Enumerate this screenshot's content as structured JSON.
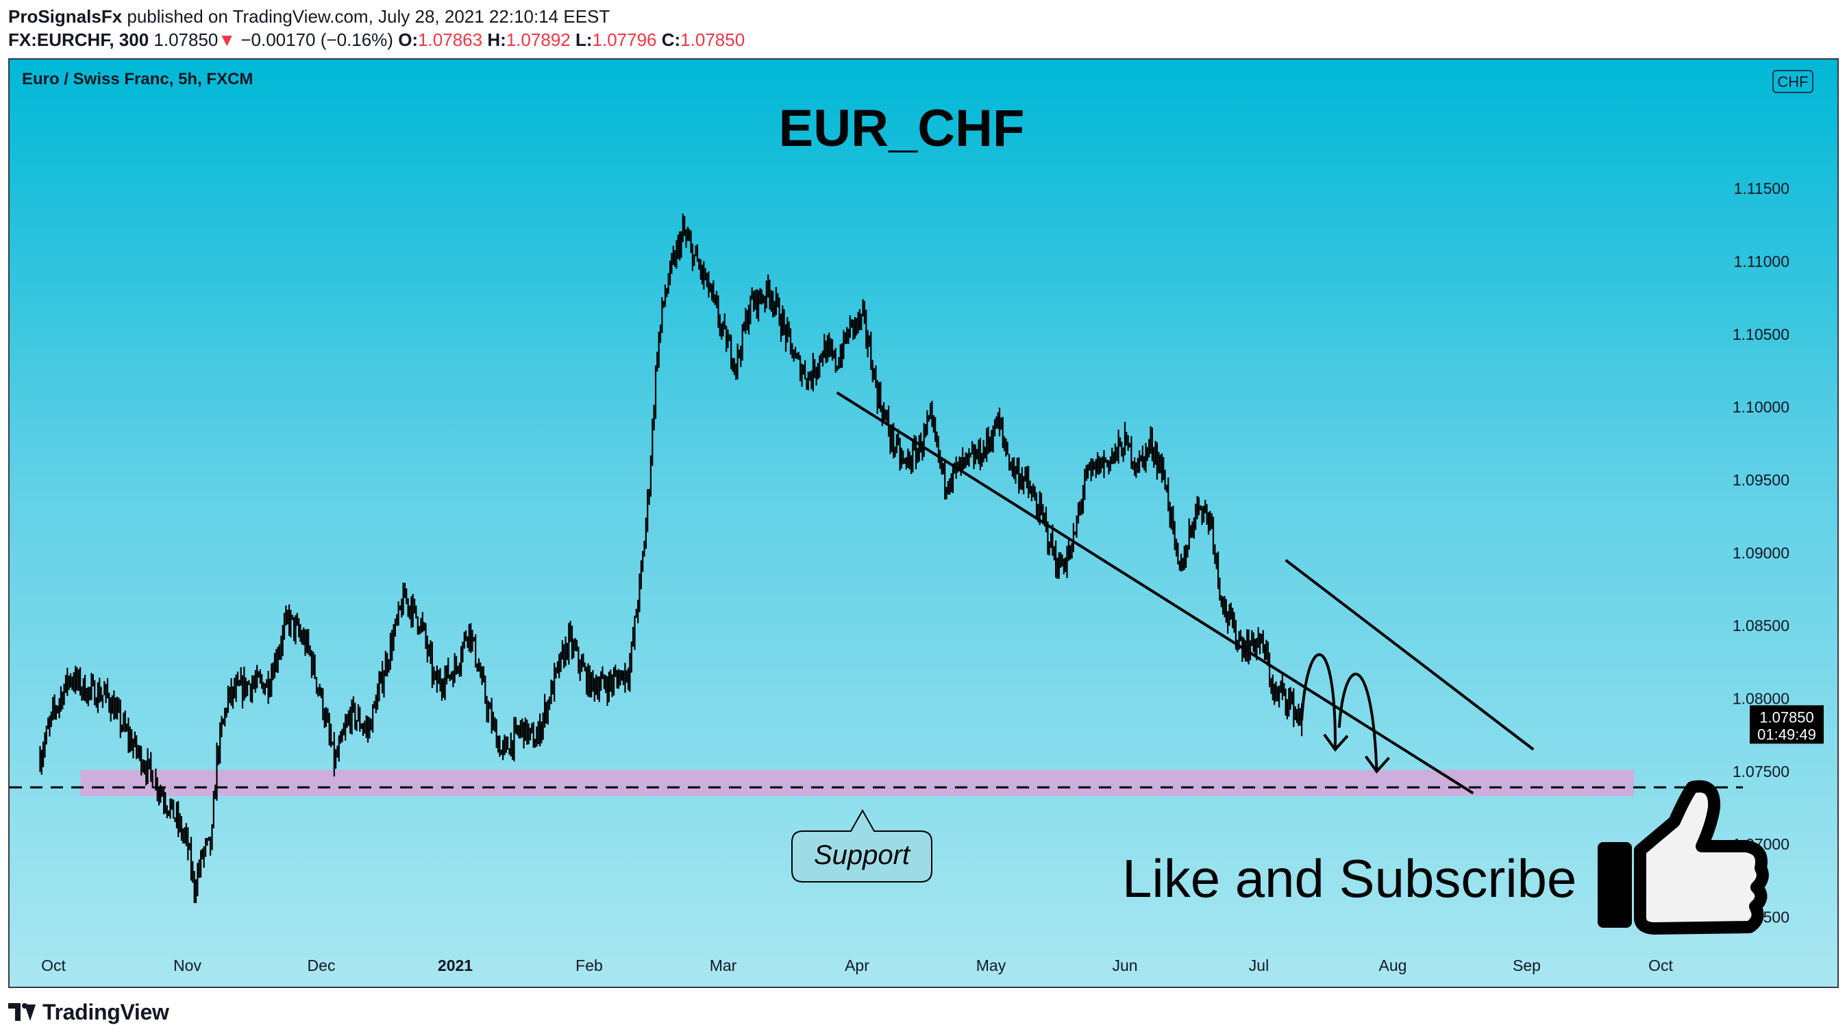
{
  "header": {
    "publisher": "ProSignalsFx",
    "published_text": "published on TradingView.com, July 28, 2021 22:10:14 EEST",
    "symbol": "FX:EURCHF, 300",
    "last": "1.07850",
    "change_arrow": "▼",
    "change": "−0.00170 (−0.16%)",
    "o_label": "O:",
    "o_value": "1.07863",
    "h_label": "H:",
    "h_value": "1.07892",
    "l_label": "L:",
    "l_value": "1.07796",
    "c_label": "C:",
    "c_value": "1.07850"
  },
  "footer": {
    "brand": "TradingView",
    "logo_icon": "tradingview-logo-icon"
  },
  "colors": {
    "bg_top": "#00b8d6",
    "bg_bottom": "#a9e7f1",
    "candles": "#000000",
    "support_zone": "#d8a6d8",
    "down": "#f23645",
    "frame": "#363a45"
  },
  "chart_data": {
    "type": "candlestick",
    "instrument_label": "Euro / Swiss Franc, 5h, FXCM",
    "title": "EUR_CHF",
    "currency_badge": "CHF",
    "y_ticks": [
      "1.11500",
      "1.11000",
      "1.10500",
      "1.10000",
      "1.09500",
      "1.09000",
      "1.08500",
      "1.08000",
      "1.07500",
      "1.07000",
      "1.06500"
    ],
    "ylim": [
      1.0614,
      1.1183
    ],
    "x_months": [
      "Oct",
      "Nov",
      "Dec",
      "2021",
      "Feb",
      "Mar",
      "Apr",
      "May",
      "Jun",
      "Jul",
      "Aug",
      "Sep",
      "Oct"
    ],
    "x_range_months": [
      0,
      12
    ],
    "last_price_label": "1.07850",
    "countdown_label": "01:49:49",
    "price_path": [
      [
        -0.1,
        1.076
      ],
      [
        0.0,
        1.079
      ],
      [
        0.12,
        1.0815
      ],
      [
        0.25,
        1.0805
      ],
      [
        0.4,
        1.0802
      ],
      [
        0.55,
        1.0775
      ],
      [
        0.75,
        1.0745
      ],
      [
        0.9,
        1.072
      ],
      [
        1.0,
        1.07
      ],
      [
        1.05,
        1.067
      ],
      [
        1.12,
        1.0695
      ],
      [
        1.18,
        1.07
      ],
      [
        1.22,
        1.076
      ],
      [
        1.3,
        1.08
      ],
      [
        1.45,
        1.081
      ],
      [
        1.6,
        1.081
      ],
      [
        1.75,
        1.0855
      ],
      [
        1.9,
        1.0835
      ],
      [
        2.0,
        1.08
      ],
      [
        2.1,
        1.0755
      ],
      [
        2.22,
        1.079
      ],
      [
        2.35,
        1.0778
      ],
      [
        2.5,
        1.083
      ],
      [
        2.62,
        1.087
      ],
      [
        2.75,
        1.085
      ],
      [
        2.85,
        1.081
      ],
      [
        3.0,
        1.082
      ],
      [
        3.1,
        1.085
      ],
      [
        3.25,
        1.079
      ],
      [
        3.35,
        1.0762
      ],
      [
        3.5,
        1.078
      ],
      [
        3.6,
        1.077
      ],
      [
        3.75,
        1.0815
      ],
      [
        3.85,
        1.084
      ],
      [
        4.0,
        1.081
      ],
      [
        4.15,
        1.081
      ],
      [
        4.3,
        1.082
      ],
      [
        4.4,
        1.0895
      ],
      [
        4.45,
        1.095
      ],
      [
        4.5,
        1.103
      ],
      [
        4.55,
        1.107
      ],
      [
        4.6,
        1.109
      ],
      [
        4.7,
        1.112
      ],
      [
        4.8,
        1.11
      ],
      [
        4.9,
        1.108
      ],
      [
        5.0,
        1.105
      ],
      [
        5.1,
        1.103
      ],
      [
        5.2,
        1.107
      ],
      [
        5.35,
        1.108
      ],
      [
        5.45,
        1.1055
      ],
      [
        5.55,
        1.103
      ],
      [
        5.65,
        1.102
      ],
      [
        5.75,
        1.104
      ],
      [
        5.85,
        1.103
      ],
      [
        5.95,
        1.1055
      ],
      [
        6.05,
        1.106
      ],
      [
        6.15,
        1.101
      ],
      [
        6.25,
        1.098
      ],
      [
        6.35,
        1.096
      ],
      [
        6.45,
        1.097
      ],
      [
        6.55,
        1.099
      ],
      [
        6.65,
        1.095
      ],
      [
        6.8,
        1.096
      ],
      [
        6.95,
        1.097
      ],
      [
        7.05,
        1.099
      ],
      [
        7.15,
        1.096
      ],
      [
        7.25,
        1.095
      ],
      [
        7.4,
        1.092
      ],
      [
        7.5,
        1.089
      ],
      [
        7.6,
        1.09
      ],
      [
        7.7,
        1.095
      ],
      [
        7.8,
        1.096
      ],
      [
        7.9,
        1.0965
      ],
      [
        8.0,
        1.0975
      ],
      [
        8.1,
        1.096
      ],
      [
        8.2,
        1.0975
      ],
      [
        8.3,
        1.095
      ],
      [
        8.35,
        1.092
      ],
      [
        8.4,
        1.0885
      ],
      [
        8.45,
        1.09
      ],
      [
        8.5,
        1.092
      ],
      [
        8.55,
        1.0935
      ],
      [
        8.65,
        1.092
      ],
      [
        8.7,
        1.088
      ],
      [
        8.75,
        1.086
      ],
      [
        8.82,
        1.0845
      ],
      [
        8.9,
        1.0835
      ],
      [
        9.0,
        1.084
      ],
      [
        9.05,
        1.083
      ],
      [
        9.12,
        1.08
      ],
      [
        9.18,
        1.0805
      ],
      [
        9.25,
        1.0795
      ],
      [
        9.32,
        1.0785
      ]
    ],
    "trendlines": [
      {
        "from": [
          5.85,
          1.101
        ],
        "to": [
          10.6,
          1.0735
        ]
      },
      {
        "from": [
          9.2,
          1.0895
        ],
        "to": [
          11.05,
          1.0765
        ]
      }
    ],
    "support_zone": [
      1.0733,
      1.0751
    ],
    "support_level": 1.0739,
    "projection_arrows": [
      {
        "from": [
          9.32,
          1.0785
        ],
        "via": [
          9.45,
          1.082
        ],
        "to": [
          9.57,
          1.0765
        ]
      },
      {
        "from": [
          9.6,
          1.078
        ],
        "via": [
          9.72,
          1.0805
        ],
        "to": [
          9.88,
          1.075
        ]
      }
    ],
    "support_label": "Support",
    "cta_text": "Like and Subscribe",
    "cta_icon": "thumbs-up-icon"
  }
}
